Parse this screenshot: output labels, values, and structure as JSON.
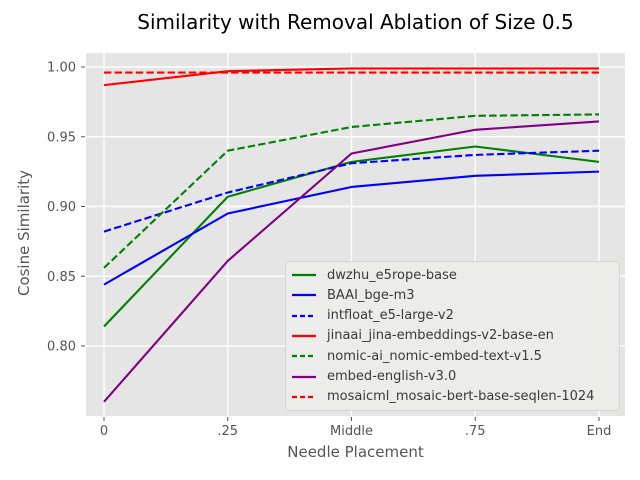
{
  "title": "Similarity with Removal Ablation of Size 0.5",
  "chart_data": {
    "type": "line",
    "title": "Similarity with Removal Ablation of Size 0.5",
    "xlabel": "Needle Placement",
    "ylabel": "Cosine Similarity",
    "categories": [
      "0",
      ".25",
      "Middle",
      ".75",
      "End"
    ],
    "ytick_values": [
      0.8,
      0.85,
      0.9,
      0.95,
      1.0
    ],
    "ytick_labels": [
      "0.80",
      "0.85",
      "0.90",
      "0.95",
      "1.00"
    ],
    "ylim": [
      0.75,
      1.011
    ],
    "grid": true,
    "legend_position": "lower right",
    "series": [
      {
        "name": "dwzhu_e5rope-base",
        "color": "#008000",
        "line_style": "solid",
        "values": [
          0.814,
          0.907,
          0.932,
          0.943,
          0.932
        ]
      },
      {
        "name": "BAAI_bge-m3",
        "color": "#0000ff",
        "line_style": "solid",
        "values": [
          0.844,
          0.895,
          0.914,
          0.922,
          0.925
        ]
      },
      {
        "name": "intfloat_e5-large-v2",
        "color": "#0000ff",
        "line_style": "dashed",
        "values": [
          0.882,
          0.91,
          0.931,
          0.937,
          0.94
        ]
      },
      {
        "name": "jinaai_jina-embeddings-v2-base-en",
        "color": "#ff0000",
        "line_style": "solid",
        "values": [
          0.987,
          0.997,
          0.999,
          0.999,
          0.999
        ]
      },
      {
        "name": "nomic-ai_nomic-embed-text-v1.5",
        "color": "#008000",
        "line_style": "dashed",
        "values": [
          0.856,
          0.94,
          0.957,
          0.965,
          0.966
        ]
      },
      {
        "name": "embed-english-v3.0",
        "color": "#800080",
        "line_style": "solid",
        "values": [
          0.76,
          0.861,
          0.938,
          0.955,
          0.961
        ]
      },
      {
        "name": "mosaicml_mosaic-bert-base-seqlen-1024",
        "color": "#ff0000",
        "line_style": "dashed",
        "values": [
          0.996,
          0.996,
          0.996,
          0.996,
          0.996
        ]
      }
    ]
  },
  "colors": {
    "figure_bg": "#ffffff",
    "axes_bg": "#e5e5e5",
    "grid": "#ffffff",
    "tick_text": "#555555",
    "tick_mark": "#555555",
    "title_text": "#000000",
    "legend_bg": "#ececeb",
    "legend_border": "#d5d5d5"
  }
}
